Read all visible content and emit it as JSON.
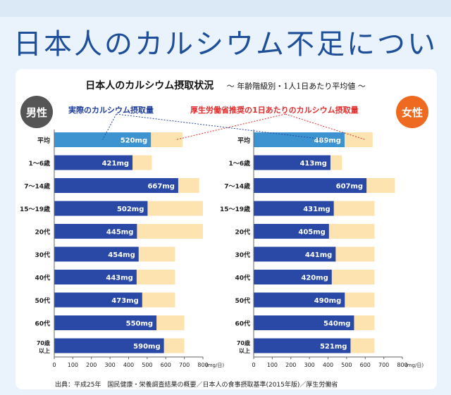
{
  "header": {
    "title": "日本人のカルシウム不足について"
  },
  "chart_title": {
    "main": "日本人のカルシウム摂取状況",
    "sub": "〜 年齢階級別・1人1日あたり平均値 〜"
  },
  "legend": {
    "actual": "実際のカルシウム摂取量",
    "recommended": "厚生労働省推奨の1日あたりのカルシウム摂取量"
  },
  "badges": {
    "male": "男性",
    "female": "女性"
  },
  "source": "出典：平成25年　国民健康・栄養調査結果の概要／日本人の食事摂取基準(2015年版)／厚生労働省",
  "colors": {
    "actual": "#2a48a6",
    "actual_average": "#3c93d0",
    "recommended": "#fde3b0",
    "title": "#1f4f99"
  },
  "chart_data": [
    {
      "type": "bar",
      "panel": "男性",
      "orientation": "horizontal",
      "categories": [
        "平均",
        "1〜6歳",
        "7〜14歳",
        "15〜19歳",
        "20代",
        "30代",
        "40代",
        "50代",
        "60代",
        "70歳以上"
      ],
      "series": [
        {
          "name": "実際のカルシウム摂取量",
          "values": [
            520,
            421,
            667,
            502,
            445,
            454,
            443,
            473,
            550,
            590
          ],
          "labels": [
            "520mg",
            "421mg",
            "667mg",
            "502mg",
            "445mg",
            "454mg",
            "443mg",
            "473mg",
            "550mg",
            "590mg"
          ]
        },
        {
          "name": "厚生労働省推奨の1日あたりのカルシウム摂取量",
          "values": [
            690,
            525,
            780,
            800,
            800,
            650,
            650,
            650,
            700,
            700
          ]
        }
      ],
      "xlim": [
        0,
        800
      ],
      "xticks": [
        "0",
        "100",
        "200",
        "300",
        "400",
        "500",
        "600",
        "700",
        "800"
      ],
      "xunit": "(mg/日)"
    },
    {
      "type": "bar",
      "panel": "女性",
      "orientation": "horizontal",
      "categories": [
        "平均",
        "1〜6歳",
        "7〜14歳",
        "15〜19歳",
        "20代",
        "30代",
        "40代",
        "50代",
        "60代",
        "70歳以上"
      ],
      "series": [
        {
          "name": "実際のカルシウム摂取量",
          "values": [
            489,
            413,
            607,
            431,
            405,
            441,
            420,
            490,
            540,
            521
          ],
          "labels": [
            "489mg",
            "413mg",
            "607mg",
            "431mg",
            "405mg",
            "441mg",
            "420mg",
            "490mg",
            "540mg",
            "521mg"
          ]
        },
        {
          "name": "厚生労働省推奨の1日あたりのカルシウム摂取量",
          "values": [
            640,
            475,
            760,
            650,
            650,
            650,
            650,
            650,
            650,
            650
          ]
        }
      ],
      "xlim": [
        0,
        800
      ],
      "xticks": [
        "0",
        "100",
        "200",
        "300",
        "400",
        "500",
        "600",
        "700",
        "800"
      ],
      "xunit": "(mg/日)"
    }
  ]
}
